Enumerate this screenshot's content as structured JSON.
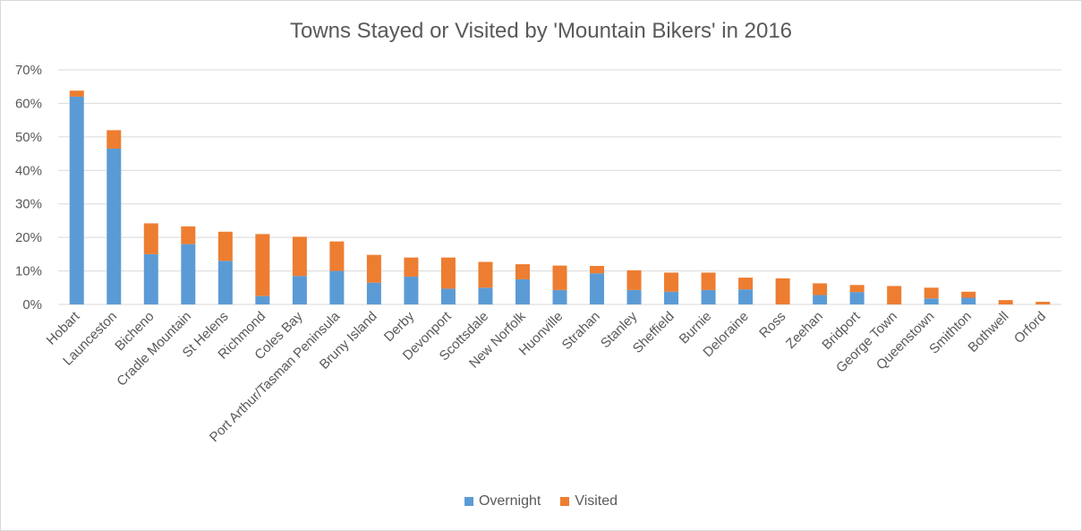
{
  "chart_data": {
    "type": "bar",
    "stacked": true,
    "title": "Towns Stayed or Visited by 'Mountain Bikers' in 2016",
    "xlabel": "",
    "ylabel": "",
    "ylim": [
      0,
      70
    ],
    "yticks": [
      "0%",
      "10%",
      "20%",
      "30%",
      "40%",
      "50%",
      "60%",
      "70%"
    ],
    "grid": true,
    "legend_position": "bottom",
    "categories": [
      "Hobart",
      "Launceston",
      "Bicheno",
      "Cradle Mountain",
      "St Helens",
      "Richmond",
      "Coles Bay",
      "Port Arthur/Tasman Peninsula",
      "Bruny Island",
      "Derby",
      "Devonport",
      "Scottsdale",
      "New Norfolk",
      "Huonville",
      "Strahan",
      "Stanley",
      "Sheffield",
      "Burnie",
      "Deloraine",
      "Ross",
      "Zeehan",
      "Bridport",
      "George Town",
      "Queenstown",
      "Smithton",
      "Bothwell",
      "Orford"
    ],
    "series": [
      {
        "name": "Overnight",
        "color": "#5b9bd5",
        "values": [
          62,
          46.5,
          15,
          18,
          13,
          2.5,
          8.5,
          10,
          6.5,
          8.3,
          4.7,
          5,
          7.5,
          4.3,
          9.3,
          4.3,
          3.8,
          4.3,
          4.5,
          0,
          2.8,
          3.7,
          0,
          1.8,
          2,
          0,
          0
        ]
      },
      {
        "name": "Visited",
        "color": "#ed7d31",
        "values": [
          1.8,
          5.5,
          9.2,
          5.3,
          8.7,
          18.5,
          11.7,
          8.8,
          8.3,
          5.7,
          9.3,
          7.7,
          4.5,
          7.3,
          2.2,
          5.9,
          5.7,
          5.2,
          3.5,
          7.8,
          3.5,
          2.1,
          5.5,
          3.2,
          1.8,
          1.3,
          0.8
        ]
      }
    ]
  }
}
